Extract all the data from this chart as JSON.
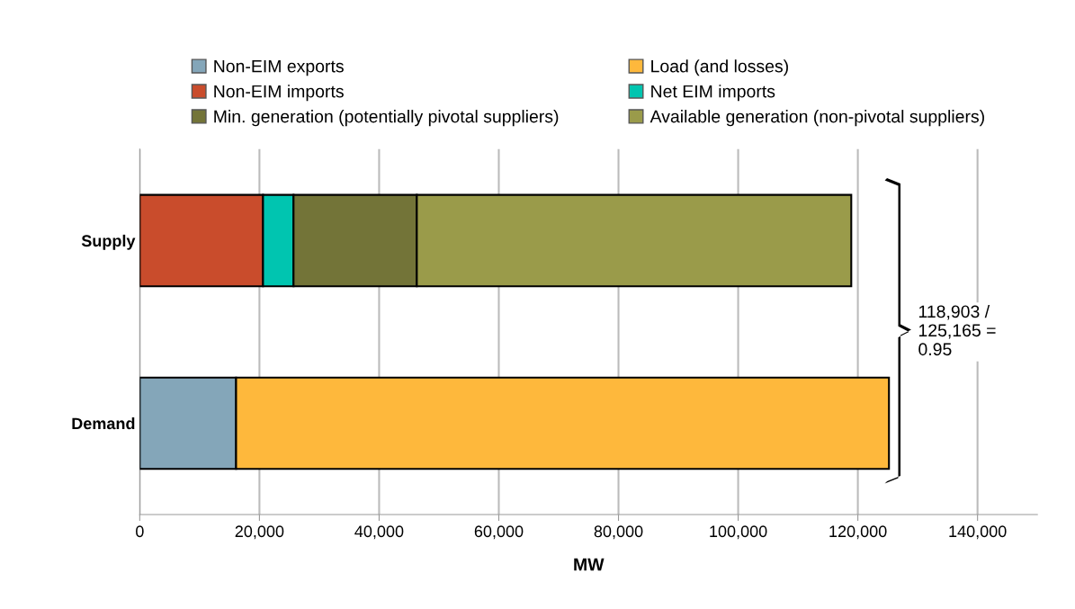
{
  "chart_data": {
    "type": "bar",
    "orientation": "horizontal",
    "stacked": true,
    "xlabel": "MW",
    "categories": [
      "Supply",
      "Demand"
    ],
    "series": [
      {
        "name": "Non-EIM exports",
        "color": "#84a6b9",
        "values": [
          null,
          16100
        ]
      },
      {
        "name": "Load (and losses)",
        "color": "#feb83c",
        "values": [
          null,
          109100
        ]
      },
      {
        "name": "Non-EIM imports",
        "color": "#c94c2c",
        "values": [
          20600,
          null
        ]
      },
      {
        "name": "Net EIM imports",
        "color": "#00c5b0",
        "values": [
          5100,
          null
        ]
      },
      {
        "name": "Min. generation (potentially pivotal suppliers)",
        "color": "#737438",
        "values": [
          20600,
          null
        ]
      },
      {
        "name": "Available generation (non-pivotal suppliers)",
        "color": "#9a9b4a",
        "values": [
          72600,
          null
        ]
      }
    ],
    "xlim": [
      0,
      150000
    ],
    "xticks": [
      {
        "value": 0,
        "label": "0"
      },
      {
        "value": 20000,
        "label": "20,000"
      },
      {
        "value": 40000,
        "label": "40,000"
      },
      {
        "value": 60000,
        "label": "60,000"
      },
      {
        "value": 80000,
        "label": "80,000"
      },
      {
        "value": 100000,
        "label": "100,000"
      },
      {
        "value": 120000,
        "label": "120,000"
      },
      {
        "value": 140000,
        "label": "140,000"
      }
    ],
    "grid": "x",
    "legend": "top",
    "annotations": [
      "118,903 /\n125,165 =\n0.95"
    ]
  }
}
